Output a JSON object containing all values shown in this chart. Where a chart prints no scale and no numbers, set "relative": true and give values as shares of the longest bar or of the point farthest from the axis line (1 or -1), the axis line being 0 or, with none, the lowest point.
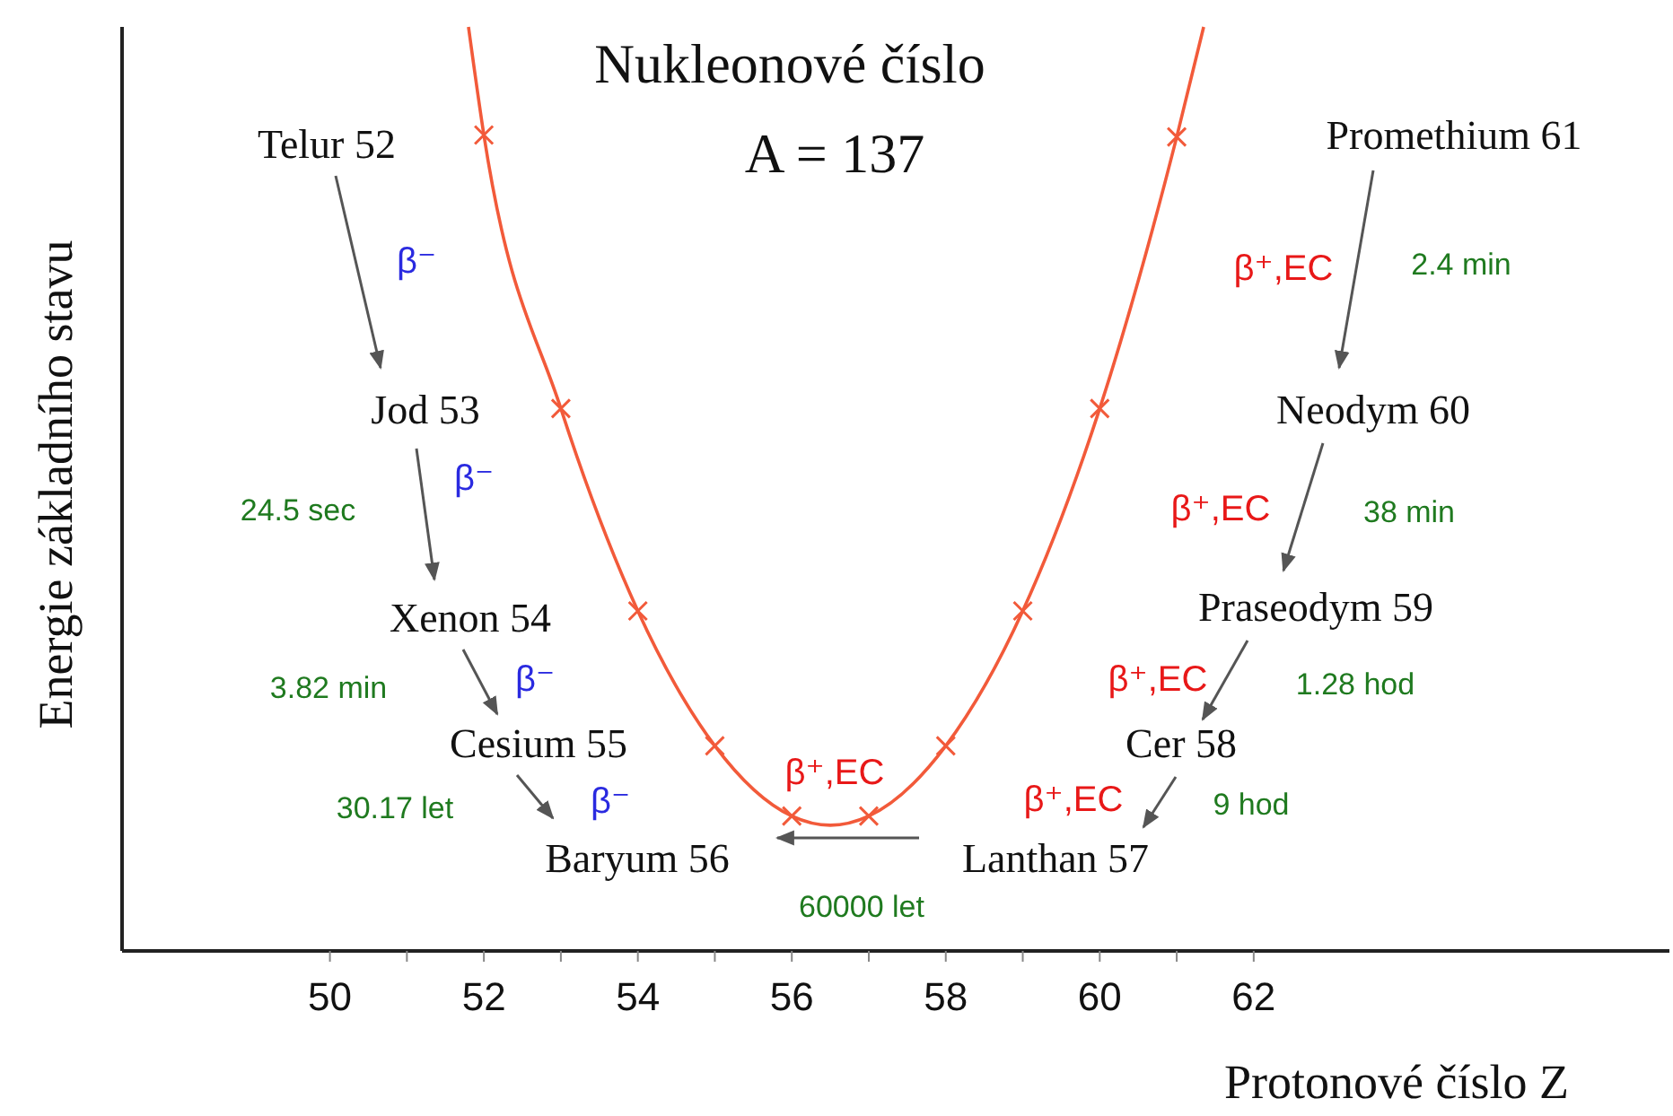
{
  "chart_data": {
    "type": "scatter",
    "title": "Nukleonové číslo",
    "subtitle": "A = 137",
    "xlabel": "Protonové číslo Z",
    "ylabel": "Energie základního stavu",
    "relative": true,
    "xlim": [
      47.3,
      67.4
    ],
    "xticks": [
      50,
      {
        "value": 51,
        "label": null
      },
      52,
      {
        "value": 53,
        "label": null
      },
      54,
      {
        "value": 55,
        "label": null
      },
      56,
      {
        "value": 57,
        "label": null
      },
      58,
      {
        "value": 59,
        "label": null
      },
      60,
      {
        "value": 61,
        "label": null
      },
      62
    ],
    "tick_labels": "x",
    "grid": false,
    "series": [
      {
        "type": "line",
        "color": "#f25a3a",
        "marker": "none",
        "x": [
          51.8,
          52,
          53,
          54,
          55,
          56,
          56.5,
          57,
          58,
          59,
          60,
          61,
          61.35
        ],
        "values": [
          1,
          0.883,
          0.587,
          0.368,
          0.222,
          0.146,
          0.136,
          0.146,
          0.222,
          0.368,
          0.587,
          0.881,
          1
        ]
      },
      {
        "color": "#f25a3a",
        "marker": "cross",
        "x": [
          52,
          53,
          54,
          55,
          56,
          57,
          58,
          59,
          60,
          61
        ],
        "values": [
          0.883,
          0.587,
          0.368,
          0.222,
          0.146,
          0.146,
          0.222,
          0.368,
          0.587,
          0.881
        ]
      }
    ],
    "annotations": [
      "Telur 52",
      "Jod 53",
      "Xenon 54",
      "Cesium 55",
      "Baryum 56",
      "Lanthan 57",
      "Cer 58",
      "Praseodym 59",
      "Neodym 60",
      "Promethium 61",
      "β⁻",
      "β⁻",
      "β⁻",
      "β⁻",
      "β⁺,EC",
      "β⁺,EC",
      "β⁺,EC",
      "β⁺,EC",
      "β⁺,EC",
      "24.5 sec",
      "3.82 min",
      "30.17 let",
      "60000 let",
      "9 hod",
      "1.28 hod",
      "38 min",
      "2.4 min"
    ]
  }
}
